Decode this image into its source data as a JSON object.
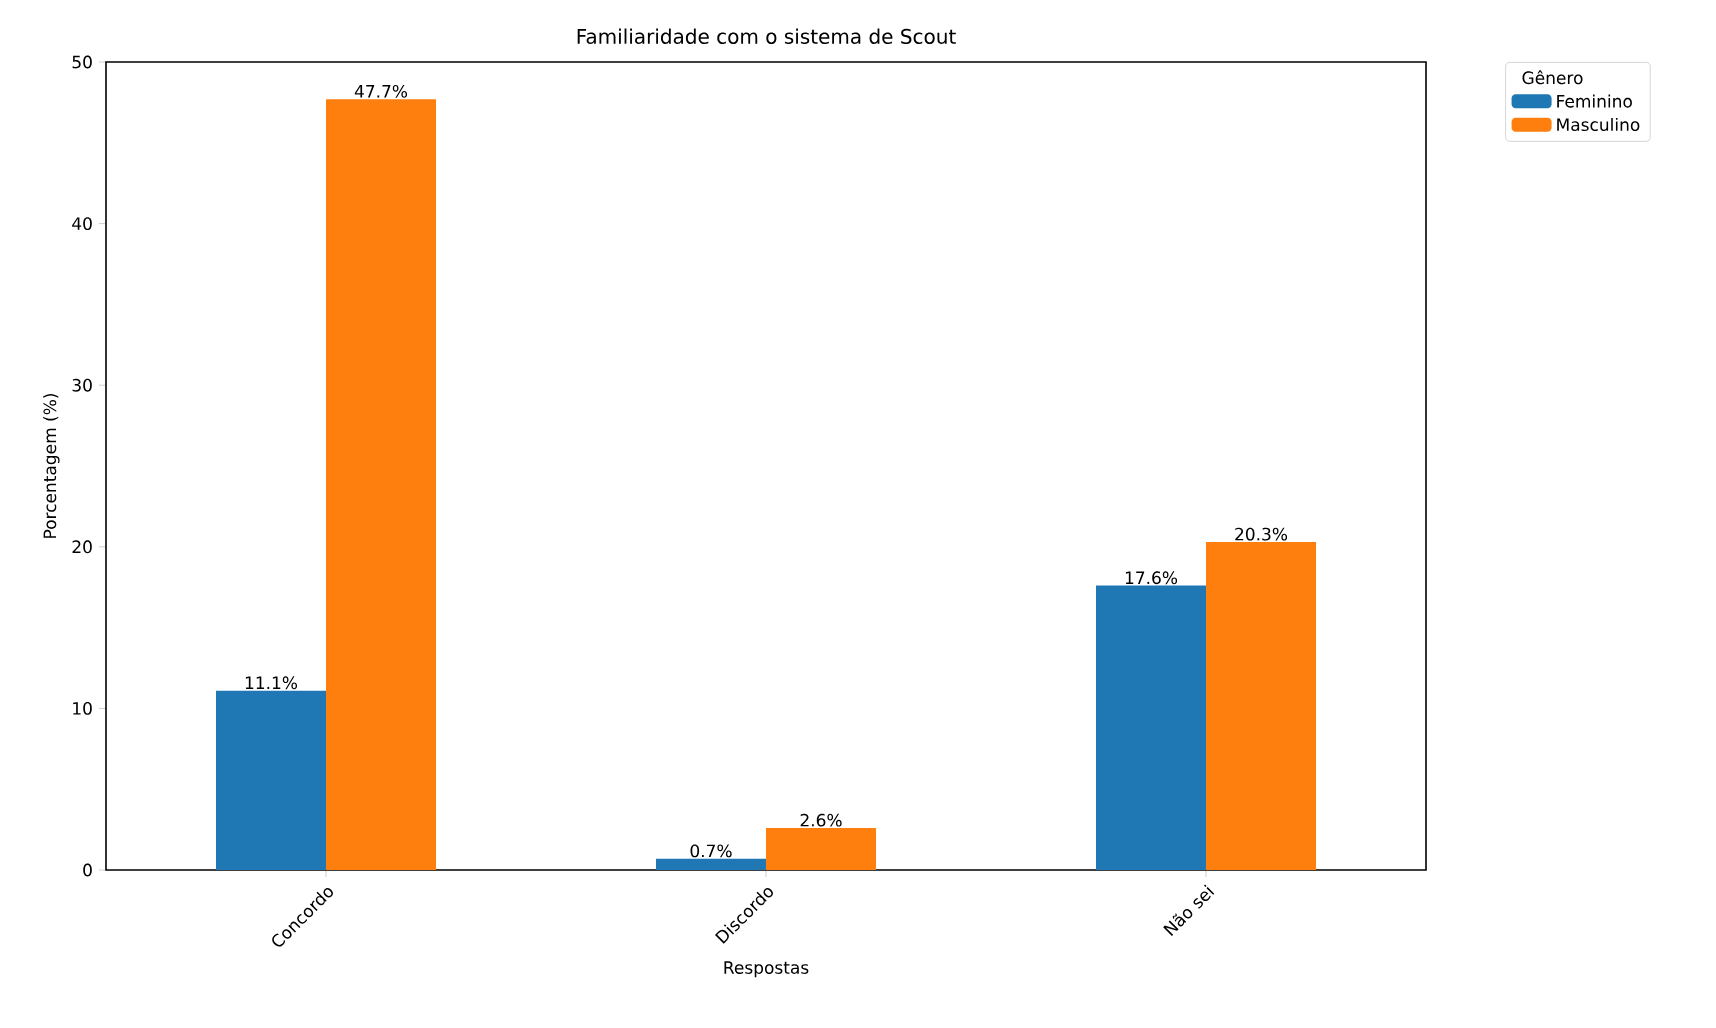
{
  "chart_data": {
    "type": "bar",
    "title": "Familiaridade com o sistema de Scout",
    "xlabel": "Respostas",
    "ylabel": "Porcentagem (%)",
    "legend_title": "Gênero",
    "categories": [
      "Concordo",
      "Discordo",
      "Não sei"
    ],
    "series": [
      {
        "name": "Feminino",
        "color": "#1f77b4",
        "values": [
          11.1,
          0.7,
          17.6
        ],
        "value_labels": [
          "11.1%",
          "0.7%",
          "17.6%"
        ]
      },
      {
        "name": "Masculino",
        "color": "#ff7f0e",
        "values": [
          47.7,
          2.6,
          20.3
        ],
        "value_labels": [
          "47.7%",
          "2.6%",
          "20.3%"
        ]
      }
    ],
    "ylim": [
      0,
      50
    ],
    "yticks": [
      0,
      10,
      20,
      30,
      40,
      50
    ],
    "legend": "top right"
  }
}
